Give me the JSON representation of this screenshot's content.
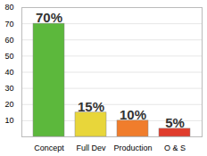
{
  "chart_data": {
    "type": "bar",
    "categories": [
      "Concept",
      "Full Dev",
      "Production",
      "O & S"
    ],
    "values": [
      70,
      15,
      10,
      5
    ],
    "value_labels": [
      "70%",
      "15%",
      "10%",
      "5%"
    ],
    "colors": [
      "#5cb83c",
      "#e8d63a",
      "#f07d2c",
      "#e03c2c"
    ],
    "ylim": [
      0,
      80
    ],
    "yticks": [
      10,
      20,
      30,
      40,
      50,
      60,
      70,
      80
    ],
    "grid": true,
    "data_labels": true
  }
}
